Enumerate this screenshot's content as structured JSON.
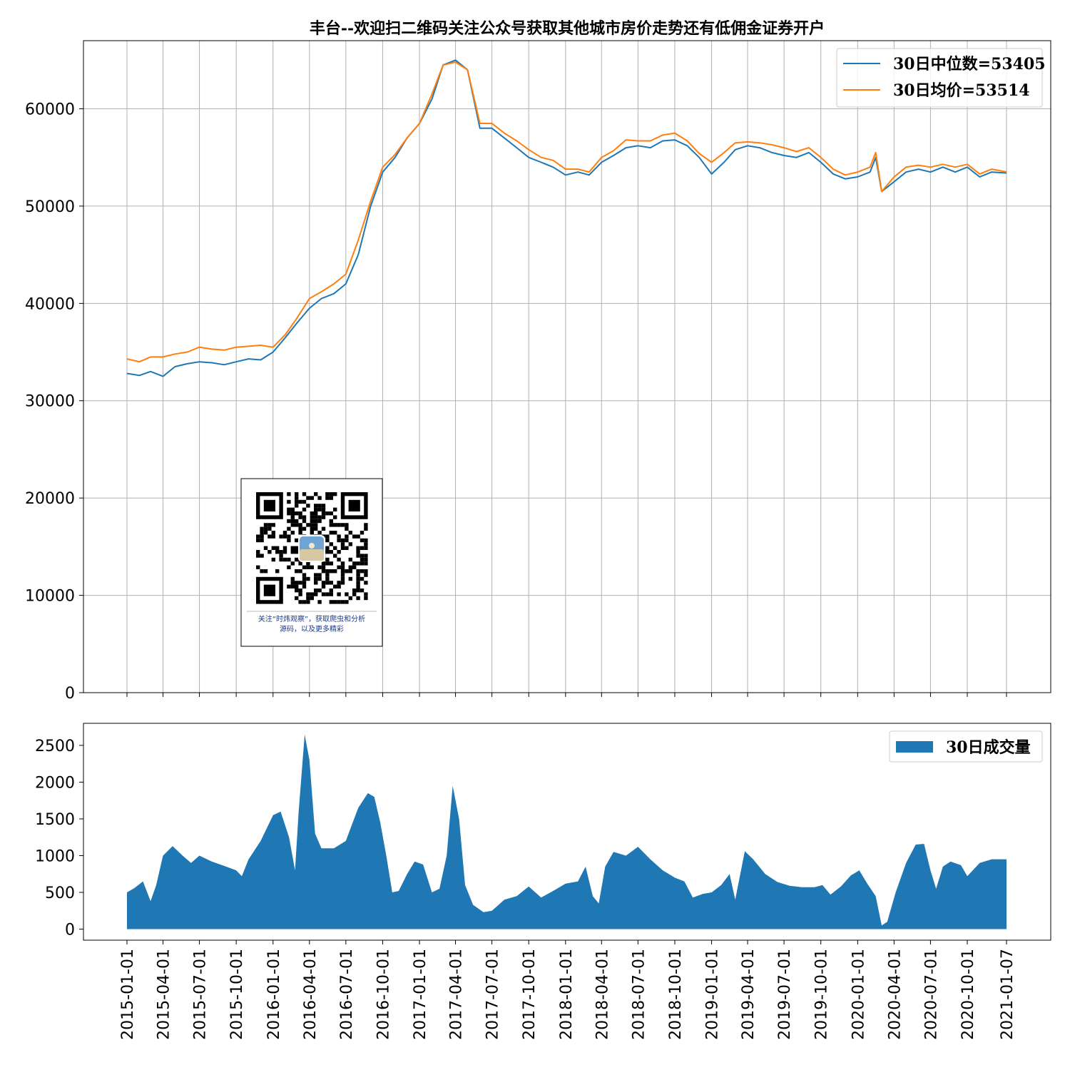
{
  "chart_data": [
    {
      "type": "line",
      "title": "丰台--欢迎扫二维码关注公众号获取其他城市房价走势还有低佣金证券开户",
      "ylim": [
        0,
        67000
      ],
      "yticks": [
        0,
        10000,
        20000,
        30000,
        40000,
        50000,
        60000
      ],
      "grid": true,
      "legend_position": "top-right",
      "series": [
        {
          "name": "30日中位数=53405",
          "color": "#1f77b4",
          "x": [
            "2015-01-01",
            "2015-02-01",
            "2015-03-01",
            "2015-04-01",
            "2015-05-01",
            "2015-06-01",
            "2015-07-01",
            "2015-08-01",
            "2015-09-01",
            "2015-10-01",
            "2015-11-01",
            "2015-12-01",
            "2016-01-01",
            "2016-02-01",
            "2016-03-01",
            "2016-04-01",
            "2016-05-01",
            "2016-06-01",
            "2016-07-01",
            "2016-08-01",
            "2016-09-01",
            "2016-10-01",
            "2016-11-01",
            "2016-12-01",
            "2017-01-01",
            "2017-02-01",
            "2017-03-01",
            "2017-04-01",
            "2017-05-01",
            "2017-06-01",
            "2017-07-01",
            "2017-08-01",
            "2017-09-01",
            "2017-10-01",
            "2017-11-01",
            "2017-12-01",
            "2018-01-01",
            "2018-02-01",
            "2018-03-01",
            "2018-04-01",
            "2018-05-01",
            "2018-06-01",
            "2018-07-01",
            "2018-08-01",
            "2018-09-01",
            "2018-10-01",
            "2018-11-01",
            "2018-12-01",
            "2019-01-01",
            "2019-02-01",
            "2019-03-01",
            "2019-04-01",
            "2019-05-01",
            "2019-06-01",
            "2019-07-01",
            "2019-08-01",
            "2019-09-01",
            "2019-10-01",
            "2019-11-01",
            "2019-12-01",
            "2020-01-01",
            "2020-02-01",
            "2020-02-15",
            "2020-03-01",
            "2020-04-01",
            "2020-05-01",
            "2020-06-01",
            "2020-07-01",
            "2020-08-01",
            "2020-09-01",
            "2020-10-01",
            "2020-11-01",
            "2020-12-01",
            "2021-01-07"
          ],
          "y": [
            32800,
            32600,
            33000,
            32500,
            33500,
            33800,
            34000,
            33900,
            33700,
            34000,
            34300,
            34200,
            35000,
            36500,
            38000,
            39500,
            40500,
            41000,
            42000,
            45000,
            50000,
            53500,
            55000,
            57000,
            58500,
            61000,
            64500,
            65000,
            64000,
            58000,
            58000,
            57000,
            56000,
            55000,
            54500,
            54000,
            53200,
            53500,
            53200,
            54500,
            55200,
            56000,
            56200,
            56000,
            56700,
            56800,
            56200,
            55000,
            53300,
            54500,
            55800,
            56200,
            56000,
            55500,
            55200,
            55000,
            55500,
            54500,
            53300,
            52800,
            53000,
            53500,
            55000,
            51500,
            52500,
            53500,
            53800,
            53500,
            54000,
            53500,
            54000,
            53000,
            53500,
            53405
          ]
        },
        {
          "name": "30日均价=53514",
          "color": "#ff7f0e",
          "x": [
            "2015-01-01",
            "2015-02-01",
            "2015-03-01",
            "2015-04-01",
            "2015-05-01",
            "2015-06-01",
            "2015-07-01",
            "2015-08-01",
            "2015-09-01",
            "2015-10-01",
            "2015-11-01",
            "2015-12-01",
            "2016-01-01",
            "2016-02-01",
            "2016-03-01",
            "2016-04-01",
            "2016-05-01",
            "2016-06-01",
            "2016-07-01",
            "2016-08-01",
            "2016-09-01",
            "2016-10-01",
            "2016-11-01",
            "2016-12-01",
            "2017-01-01",
            "2017-02-01",
            "2017-03-01",
            "2017-04-01",
            "2017-05-01",
            "2017-06-01",
            "2017-07-01",
            "2017-08-01",
            "2017-09-01",
            "2017-10-01",
            "2017-11-01",
            "2017-12-01",
            "2018-01-01",
            "2018-02-01",
            "2018-03-01",
            "2018-04-01",
            "2018-05-01",
            "2018-06-01",
            "2018-07-01",
            "2018-08-01",
            "2018-09-01",
            "2018-10-01",
            "2018-11-01",
            "2018-12-01",
            "2019-01-01",
            "2019-02-01",
            "2019-03-01",
            "2019-04-01",
            "2019-05-01",
            "2019-06-01",
            "2019-07-01",
            "2019-08-01",
            "2019-09-01",
            "2019-10-01",
            "2019-11-01",
            "2019-12-01",
            "2020-01-01",
            "2020-02-01",
            "2020-02-15",
            "2020-03-01",
            "2020-04-01",
            "2020-05-01",
            "2020-06-01",
            "2020-07-01",
            "2020-08-01",
            "2020-09-01",
            "2020-10-01",
            "2020-11-01",
            "2020-12-01",
            "2021-01-07"
          ],
          "y": [
            34300,
            34000,
            34500,
            34500,
            34800,
            35000,
            35500,
            35300,
            35200,
            35500,
            35600,
            35700,
            35500,
            36800,
            38500,
            40500,
            41200,
            42000,
            43000,
            46500,
            50500,
            54000,
            55300,
            57000,
            58500,
            61500,
            64500,
            64800,
            64000,
            58500,
            58500,
            57500,
            56700,
            55800,
            55000,
            54700,
            53800,
            53800,
            53500,
            55000,
            55700,
            56800,
            56700,
            56700,
            57300,
            57500,
            56700,
            55400,
            54500,
            55500,
            56500,
            56600,
            56500,
            56300,
            56000,
            55600,
            56000,
            55000,
            53800,
            53200,
            53500,
            54000,
            55500,
            51500,
            53000,
            54000,
            54200,
            54000,
            54300,
            54000,
            54300,
            53300,
            53800,
            53514
          ]
        }
      ]
    },
    {
      "type": "area",
      "ylim": [
        -150,
        2800
      ],
      "yticks": [
        0,
        500,
        1000,
        1500,
        2000,
        2500
      ],
      "grid": false,
      "legend_position": "top-right",
      "xticks": [
        "2015-01-01",
        "2015-04-01",
        "2015-07-01",
        "2015-10-01",
        "2016-01-01",
        "2016-04-01",
        "2016-07-01",
        "2016-10-01",
        "2017-01-01",
        "2017-04-01",
        "2017-07-01",
        "2017-10-01",
        "2018-01-01",
        "2018-04-01",
        "2018-07-01",
        "2018-10-01",
        "2019-01-01",
        "2019-04-01",
        "2019-07-01",
        "2019-10-01",
        "2020-01-01",
        "2020-04-01",
        "2020-07-01",
        "2020-10-01",
        "2021-01-07"
      ],
      "series": [
        {
          "name": "30日成交量",
          "color": "#1f77b4",
          "x": [
            "2015-01-01",
            "2015-01-20",
            "2015-02-10",
            "2015-03-01",
            "2015-03-15",
            "2015-04-01",
            "2015-04-25",
            "2015-05-20",
            "2015-06-10",
            "2015-07-01",
            "2015-08-01",
            "2015-09-01",
            "2015-10-01",
            "2015-10-15",
            "2015-11-01",
            "2015-12-01",
            "2016-01-01",
            "2016-01-20",
            "2016-02-10",
            "2016-02-25",
            "2016-03-05",
            "2016-03-20",
            "2016-04-01",
            "2016-04-15",
            "2016-05-01",
            "2016-06-01",
            "2016-07-01",
            "2016-08-01",
            "2016-08-25",
            "2016-09-10",
            "2016-09-25",
            "2016-10-10",
            "2016-10-25",
            "2016-11-10",
            "2016-12-01",
            "2016-12-20",
            "2017-01-10",
            "2017-02-01",
            "2017-02-20",
            "2017-03-10",
            "2017-03-25",
            "2017-04-10",
            "2017-04-25",
            "2017-05-15",
            "2017-06-10",
            "2017-07-01",
            "2017-08-01",
            "2017-09-01",
            "2017-10-01",
            "2017-11-01",
            "2017-12-01",
            "2018-01-01",
            "2018-02-01",
            "2018-02-20",
            "2018-03-10",
            "2018-03-25",
            "2018-04-10",
            "2018-05-01",
            "2018-06-01",
            "2018-07-01",
            "2018-08-01",
            "2018-09-01",
            "2018-10-01",
            "2018-10-25",
            "2018-11-15",
            "2018-12-10",
            "2019-01-01",
            "2019-01-25",
            "2019-02-15",
            "2019-03-01",
            "2019-03-25",
            "2019-04-15",
            "2019-05-15",
            "2019-06-15",
            "2019-07-15",
            "2019-08-15",
            "2019-09-15",
            "2019-10-05",
            "2019-10-25",
            "2019-11-20",
            "2019-12-15",
            "2020-01-05",
            "2020-01-25",
            "2020-02-15",
            "2020-03-01",
            "2020-03-15",
            "2020-04-05",
            "2020-05-01",
            "2020-05-25",
            "2020-06-15",
            "2020-07-01",
            "2020-07-15",
            "2020-08-01",
            "2020-08-20",
            "2020-09-15",
            "2020-10-01",
            "2020-11-01",
            "2020-12-01",
            "2021-01-07"
          ],
          "y": [
            500,
            560,
            650,
            380,
            600,
            1000,
            1130,
            1000,
            900,
            1000,
            920,
            860,
            800,
            720,
            950,
            1200,
            1550,
            1600,
            1250,
            800,
            1600,
            2650,
            2300,
            1300,
            1100,
            1100,
            1200,
            1650,
            1850,
            1800,
            1450,
            1000,
            500,
            520,
            750,
            920,
            880,
            500,
            550,
            1000,
            1950,
            1500,
            600,
            330,
            230,
            250,
            400,
            450,
            580,
            430,
            520,
            620,
            650,
            850,
            450,
            350,
            850,
            1050,
            1000,
            1120,
            950,
            800,
            700,
            650,
            430,
            480,
            500,
            600,
            750,
            400,
            1060,
            950,
            750,
            640,
            590,
            570,
            570,
            600,
            470,
            580,
            730,
            800,
            620,
            450,
            50,
            100,
            500,
            900,
            1150,
            1160,
            800,
            550,
            850,
            920,
            870,
            720,
            900,
            950,
            950
          ]
        }
      ]
    }
  ],
  "qr": {
    "caption_line1": "关注“时炜观察”，获取爬虫和分析",
    "caption_line2": "源码，以及更多精彩"
  }
}
